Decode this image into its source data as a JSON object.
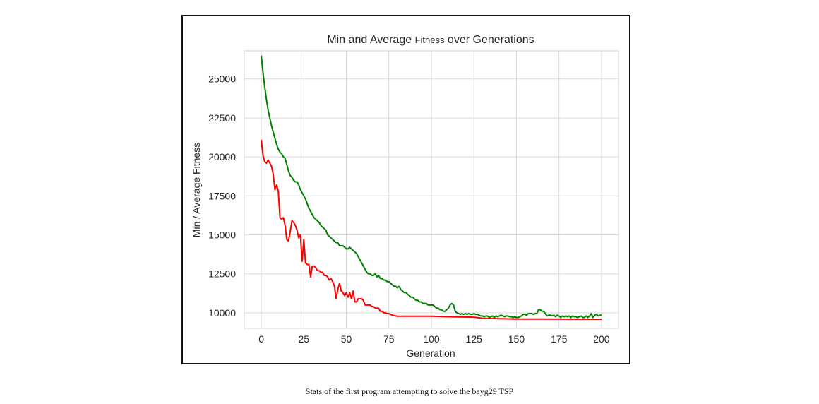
{
  "caption": "Stats of the first program attempting to solve the bayg29 TSP",
  "chart_data": {
    "type": "line",
    "title_prefix": "Min and Average ",
    "title_fitness": "Fitness",
    "title_suffix": " over Generations",
    "xlabel": "Generation",
    "ylabel": "Min / Average Fitness",
    "xlim": [
      -10,
      210
    ],
    "ylim": [
      9000,
      26800
    ],
    "xticks": [
      0,
      25,
      50,
      75,
      100,
      125,
      150,
      175,
      200
    ],
    "yticks": [
      10000,
      12500,
      15000,
      17500,
      20000,
      22500,
      25000
    ],
    "grid": true,
    "series": [
      {
        "color": "#ff0000",
        "points": [
          [
            0,
            21100
          ],
          [
            1,
            20100
          ],
          [
            2,
            19700
          ],
          [
            3,
            19600
          ],
          [
            4,
            19800
          ],
          [
            5,
            19600
          ],
          [
            6,
            19400
          ],
          [
            7,
            18900
          ],
          [
            8,
            17900
          ],
          [
            9,
            18200
          ],
          [
            10,
            17800
          ],
          [
            11,
            16100
          ],
          [
            12,
            16000
          ],
          [
            13,
            16100
          ],
          [
            14,
            15600
          ],
          [
            15,
            14700
          ],
          [
            16,
            14600
          ],
          [
            17,
            15200
          ],
          [
            18,
            15900
          ],
          [
            19,
            15800
          ],
          [
            20,
            15600
          ],
          [
            21,
            15300
          ],
          [
            22,
            14800
          ],
          [
            23,
            15000
          ],
          [
            24,
            13300
          ],
          [
            25,
            14700
          ],
          [
            26,
            13200
          ],
          [
            27,
            13100
          ],
          [
            28,
            13100
          ],
          [
            29,
            12300
          ],
          [
            30,
            13000
          ],
          [
            31,
            13000
          ],
          [
            32,
            12900
          ],
          [
            33,
            12700
          ],
          [
            34,
            12700
          ],
          [
            35,
            12600
          ],
          [
            36,
            12600
          ],
          [
            37,
            12400
          ],
          [
            38,
            12400
          ],
          [
            39,
            12300
          ],
          [
            40,
            12100
          ],
          [
            41,
            12200
          ],
          [
            42,
            12000
          ],
          [
            43,
            11700
          ],
          [
            44,
            10900
          ],
          [
            45,
            11500
          ],
          [
            46,
            11900
          ],
          [
            47,
            11400
          ],
          [
            48,
            11300
          ],
          [
            49,
            11100
          ],
          [
            50,
            11300
          ],
          [
            51,
            11000
          ],
          [
            52,
            11300
          ],
          [
            53,
            10900
          ],
          [
            54,
            11400
          ],
          [
            55,
            10700
          ],
          [
            56,
            10700
          ],
          [
            57,
            10900
          ],
          [
            58,
            10900
          ],
          [
            59,
            10900
          ],
          [
            60,
            10800
          ],
          [
            61,
            10500
          ],
          [
            62,
            10500
          ],
          [
            63,
            10500
          ],
          [
            64,
            10500
          ],
          [
            65,
            10400
          ],
          [
            66,
            10400
          ],
          [
            67,
            10300
          ],
          [
            68,
            10300
          ],
          [
            69,
            10300
          ],
          [
            70,
            10100
          ],
          [
            71,
            10100
          ],
          [
            72,
            10000
          ],
          [
            73,
            10000
          ],
          [
            74,
            9950
          ],
          [
            75,
            9950
          ],
          [
            77,
            9850
          ],
          [
            80,
            9780
          ],
          [
            100,
            9780
          ],
          [
            110,
            9750
          ],
          [
            125,
            9720
          ],
          [
            130,
            9650
          ],
          [
            140,
            9620
          ],
          [
            150,
            9600
          ],
          [
            200,
            9590
          ]
        ]
      },
      {
        "color": "#008000",
        "points": [
          [
            0,
            26500
          ],
          [
            1,
            25400
          ],
          [
            2,
            24500
          ],
          [
            3,
            23700
          ],
          [
            4,
            23000
          ],
          [
            5,
            22500
          ],
          [
            6,
            22000
          ],
          [
            7,
            21600
          ],
          [
            8,
            21200
          ],
          [
            9,
            20800
          ],
          [
            10,
            20500
          ],
          [
            11,
            20300
          ],
          [
            12,
            20200
          ],
          [
            13,
            20000
          ],
          [
            14,
            19900
          ],
          [
            15,
            19500
          ],
          [
            16,
            19100
          ],
          [
            17,
            18800
          ],
          [
            18,
            18700
          ],
          [
            19,
            18500
          ],
          [
            20,
            18400
          ],
          [
            21,
            18400
          ],
          [
            22,
            18200
          ],
          [
            23,
            17900
          ],
          [
            24,
            17700
          ],
          [
            25,
            17500
          ],
          [
            26,
            17300
          ],
          [
            27,
            17000
          ],
          [
            28,
            16700
          ],
          [
            29,
            16500
          ],
          [
            30,
            16300
          ],
          [
            31,
            16100
          ],
          [
            32,
            16000
          ],
          [
            33,
            15900
          ],
          [
            34,
            15800
          ],
          [
            35,
            15600
          ],
          [
            36,
            15500
          ],
          [
            37,
            15400
          ],
          [
            38,
            15300
          ],
          [
            39,
            15000
          ],
          [
            40,
            14900
          ],
          [
            41,
            14800
          ],
          [
            42,
            14700
          ],
          [
            43,
            14600
          ],
          [
            44,
            14500
          ],
          [
            45,
            14500
          ],
          [
            46,
            14300
          ],
          [
            47,
            14300
          ],
          [
            48,
            14300
          ],
          [
            49,
            14200
          ],
          [
            50,
            14100
          ],
          [
            51,
            14100
          ],
          [
            52,
            14200
          ],
          [
            53,
            14100
          ],
          [
            54,
            14000
          ],
          [
            55,
            13900
          ],
          [
            56,
            13800
          ],
          [
            57,
            13600
          ],
          [
            58,
            13400
          ],
          [
            59,
            13200
          ],
          [
            60,
            13000
          ],
          [
            61,
            12800
          ],
          [
            62,
            12600
          ],
          [
            63,
            12500
          ],
          [
            64,
            12500
          ],
          [
            65,
            12400
          ],
          [
            66,
            12400
          ],
          [
            67,
            12500
          ],
          [
            68,
            12300
          ],
          [
            69,
            12400
          ],
          [
            70,
            12200
          ],
          [
            71,
            12200
          ],
          [
            72,
            12100
          ],
          [
            73,
            12100
          ],
          [
            74,
            12000
          ],
          [
            75,
            12000
          ],
          [
            76,
            11900
          ],
          [
            77,
            11800
          ],
          [
            78,
            11700
          ],
          [
            79,
            11700
          ],
          [
            80,
            11600
          ],
          [
            81,
            11700
          ],
          [
            82,
            11500
          ],
          [
            83,
            11400
          ],
          [
            84,
            11300
          ],
          [
            85,
            11300
          ],
          [
            86,
            11200
          ],
          [
            87,
            11100
          ],
          [
            88,
            11000
          ],
          [
            89,
            11000
          ],
          [
            90,
            10900
          ],
          [
            91,
            10800
          ],
          [
            92,
            10800
          ],
          [
            93,
            10700
          ],
          [
            94,
            10700
          ],
          [
            95,
            10600
          ],
          [
            96,
            10600
          ],
          [
            97,
            10600
          ],
          [
            98,
            10500
          ],
          [
            99,
            10500
          ],
          [
            100,
            10500
          ],
          [
            101,
            10500
          ],
          [
            102,
            10400
          ],
          [
            103,
            10300
          ],
          [
            104,
            10300
          ],
          [
            105,
            10200
          ],
          [
            106,
            10200
          ],
          [
            107,
            10100
          ],
          [
            108,
            10100
          ],
          [
            109,
            10200
          ],
          [
            110,
            10300
          ],
          [
            111,
            10500
          ],
          [
            112,
            10600
          ],
          [
            113,
            10500
          ],
          [
            114,
            10100
          ],
          [
            115,
            10000
          ],
          [
            116,
            9950
          ],
          [
            117,
            9900
          ],
          [
            118,
            9950
          ],
          [
            119,
            9900
          ],
          [
            120,
            9950
          ],
          [
            121,
            9900
          ],
          [
            122,
            9950
          ],
          [
            123,
            9900
          ],
          [
            124,
            9900
          ],
          [
            125,
            9950
          ],
          [
            126,
            9900
          ],
          [
            127,
            9900
          ],
          [
            128,
            9850
          ],
          [
            129,
            9800
          ],
          [
            130,
            9800
          ],
          [
            131,
            9750
          ],
          [
            132,
            9800
          ],
          [
            133,
            9800
          ],
          [
            134,
            9700
          ],
          [
            135,
            9750
          ],
          [
            136,
            9800
          ],
          [
            137,
            9700
          ],
          [
            138,
            9800
          ],
          [
            139,
            9750
          ],
          [
            140,
            9800
          ],
          [
            141,
            9850
          ],
          [
            142,
            9800
          ],
          [
            143,
            9750
          ],
          [
            144,
            9800
          ],
          [
            145,
            9800
          ],
          [
            146,
            9750
          ],
          [
            147,
            9750
          ],
          [
            148,
            9700
          ],
          [
            149,
            9750
          ],
          [
            150,
            9700
          ],
          [
            151,
            9700
          ],
          [
            152,
            9750
          ],
          [
            153,
            9800
          ],
          [
            154,
            9900
          ],
          [
            155,
            9900
          ],
          [
            156,
            9850
          ],
          [
            157,
            9950
          ],
          [
            158,
            9950
          ],
          [
            159,
            9950
          ],
          [
            160,
            9900
          ],
          [
            161,
            9950
          ],
          [
            162,
            9950
          ],
          [
            163,
            10200
          ],
          [
            164,
            10200
          ],
          [
            165,
            10100
          ],
          [
            166,
            10100
          ],
          [
            167,
            9950
          ],
          [
            168,
            9800
          ],
          [
            169,
            9850
          ],
          [
            170,
            9850
          ],
          [
            171,
            9800
          ],
          [
            172,
            9850
          ],
          [
            173,
            9750
          ],
          [
            174,
            9850
          ],
          [
            175,
            9800
          ],
          [
            176,
            9700
          ],
          [
            177,
            9800
          ],
          [
            178,
            9750
          ],
          [
            179,
            9800
          ],
          [
            180,
            9750
          ],
          [
            181,
            9800
          ],
          [
            182,
            9700
          ],
          [
            183,
            9800
          ],
          [
            184,
            9750
          ],
          [
            185,
            9750
          ],
          [
            186,
            9700
          ],
          [
            187,
            9750
          ],
          [
            188,
            9800
          ],
          [
            189,
            9700
          ],
          [
            190,
            9700
          ],
          [
            191,
            9800
          ],
          [
            192,
            9700
          ],
          [
            193,
            9800
          ],
          [
            194,
            9950
          ],
          [
            195,
            9700
          ],
          [
            196,
            9850
          ],
          [
            197,
            9900
          ],
          [
            198,
            9800
          ],
          [
            199,
            9850
          ],
          [
            200,
            9850
          ]
        ]
      }
    ]
  }
}
